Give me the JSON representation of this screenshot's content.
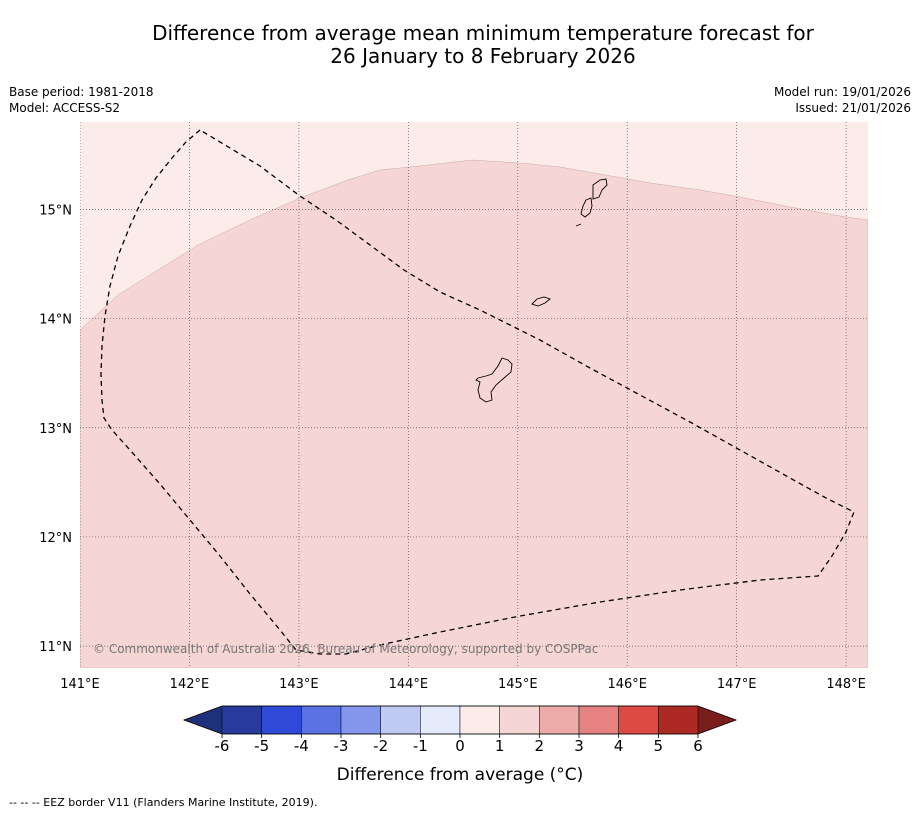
{
  "title": {
    "line1": "Difference from average mean minimum temperature forecast for",
    "line2": "26 January to 8 February 2026"
  },
  "info": {
    "base_period": "Base period: 1981-2018",
    "model": "Model: ACCESS-S2",
    "model_run": "Model run: 19/01/2026",
    "issued": "Issued: 21/01/2026"
  },
  "map": {
    "lat_labels": [
      "15°N",
      "14°N",
      "13°N",
      "12°N",
      "11°N"
    ],
    "lon_labels": [
      "141°E",
      "142°E",
      "143°E",
      "144°E",
      "145°E",
      "146°E",
      "147°E",
      "148°E"
    ],
    "lat_values": [
      15,
      14,
      13,
      12,
      11
    ],
    "lon_values": [
      141,
      142,
      143,
      144,
      145,
      146,
      147,
      148
    ],
    "lon_range": [
      141,
      148.2
    ],
    "lat_range": [
      10.8,
      15.8
    ],
    "copyright": "© Commonwealth of Australia 2026, Bureau of Meteorology, supported by COSPPac",
    "regions": [
      {
        "category": "0 to 1",
        "color": "#fbecea"
      },
      {
        "category": "1 to 2",
        "color": "#f5d6d4"
      }
    ]
  },
  "colorbar": {
    "tick_labels": [
      "-6",
      "-5",
      "-4",
      "-3",
      "-2",
      "-1",
      "0",
      "1",
      "2",
      "3",
      "4",
      "5",
      "6"
    ],
    "colors": [
      "#283a9c",
      "#3149d8",
      "#5a72e4",
      "#8396eb",
      "#c0c9f3",
      "#e6ebfb",
      "#fbecea",
      "#f5d6d4",
      "#edaca9",
      "#e6827f",
      "#dc4a43",
      "#ad2a24"
    ],
    "under_color": "#1e2f7c",
    "over_color": "#771d1a",
    "label": "Difference from average (°C)"
  },
  "footnote": "--  --  -- EEZ border V11 (Flanders Marine Institute, 2019)."
}
